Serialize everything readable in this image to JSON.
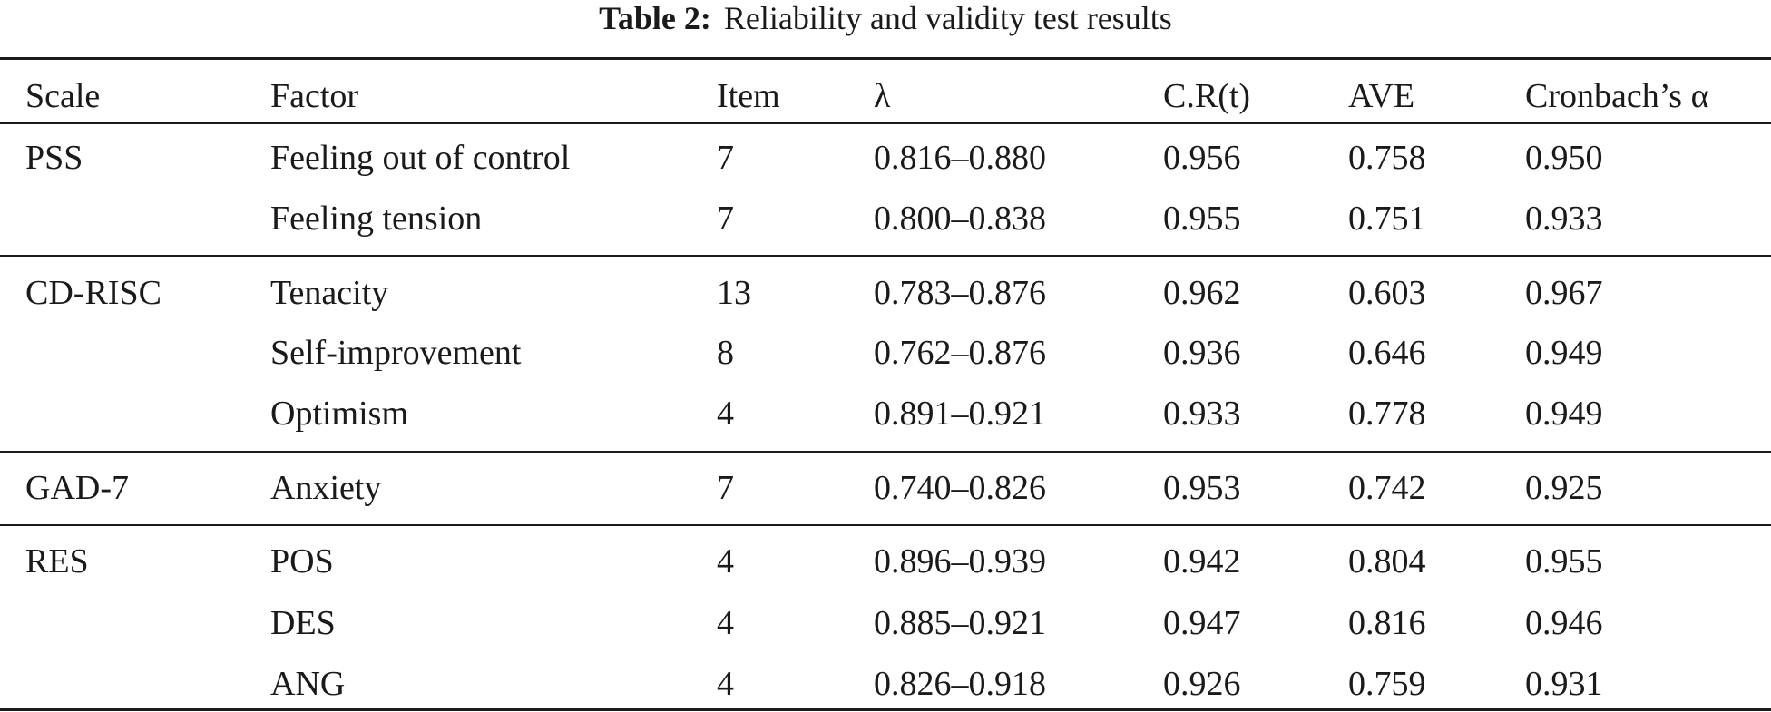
{
  "caption": {
    "label": "Table 2:",
    "text": "Reliability and validity test results"
  },
  "columns": {
    "scale": "Scale",
    "factor": "Factor",
    "item": "Item",
    "lambda": "λ",
    "cr": "C.R(t)",
    "ave": "AVE",
    "alpha": "Cronbach’s α"
  },
  "rows": [
    {
      "scale": "PSS",
      "factor": "Feeling out of control",
      "item": "7",
      "lambda": "0.816–0.880",
      "cr": "0.956",
      "ave": "0.758",
      "alpha": "0.950"
    },
    {
      "scale": "",
      "factor": "Feeling tension",
      "item": "7",
      "lambda": "0.800–0.838",
      "cr": "0.955",
      "ave": "0.751",
      "alpha": "0.933"
    },
    {
      "scale": "CD-RISC",
      "factor": "Tenacity",
      "item": "13",
      "lambda": "0.783–0.876",
      "cr": "0.962",
      "ave": "0.603",
      "alpha": "0.967"
    },
    {
      "scale": "",
      "factor": "Self-improvement",
      "item": "8",
      "lambda": "0.762–0.876",
      "cr": "0.936",
      "ave": "0.646",
      "alpha": "0.949"
    },
    {
      "scale": "",
      "factor": "Optimism",
      "item": "4",
      "lambda": "0.891–0.921",
      "cr": "0.933",
      "ave": "0.778",
      "alpha": "0.949"
    },
    {
      "scale": "GAD-7",
      "factor": "Anxiety",
      "item": "7",
      "lambda": "0.740–0.826",
      "cr": "0.953",
      "ave": "0.742",
      "alpha": "0.925"
    },
    {
      "scale": "RES",
      "factor": "POS",
      "item": "4",
      "lambda": "0.896–0.939",
      "cr": "0.942",
      "ave": "0.804",
      "alpha": "0.955"
    },
    {
      "scale": "",
      "factor": "DES",
      "item": "4",
      "lambda": "0.885–0.921",
      "cr": "0.947",
      "ave": "0.816",
      "alpha": "0.946"
    },
    {
      "scale": "",
      "factor": "ANG",
      "item": "4",
      "lambda": "0.826–0.918",
      "cr": "0.926",
      "ave": "0.759",
      "alpha": "0.931"
    }
  ]
}
